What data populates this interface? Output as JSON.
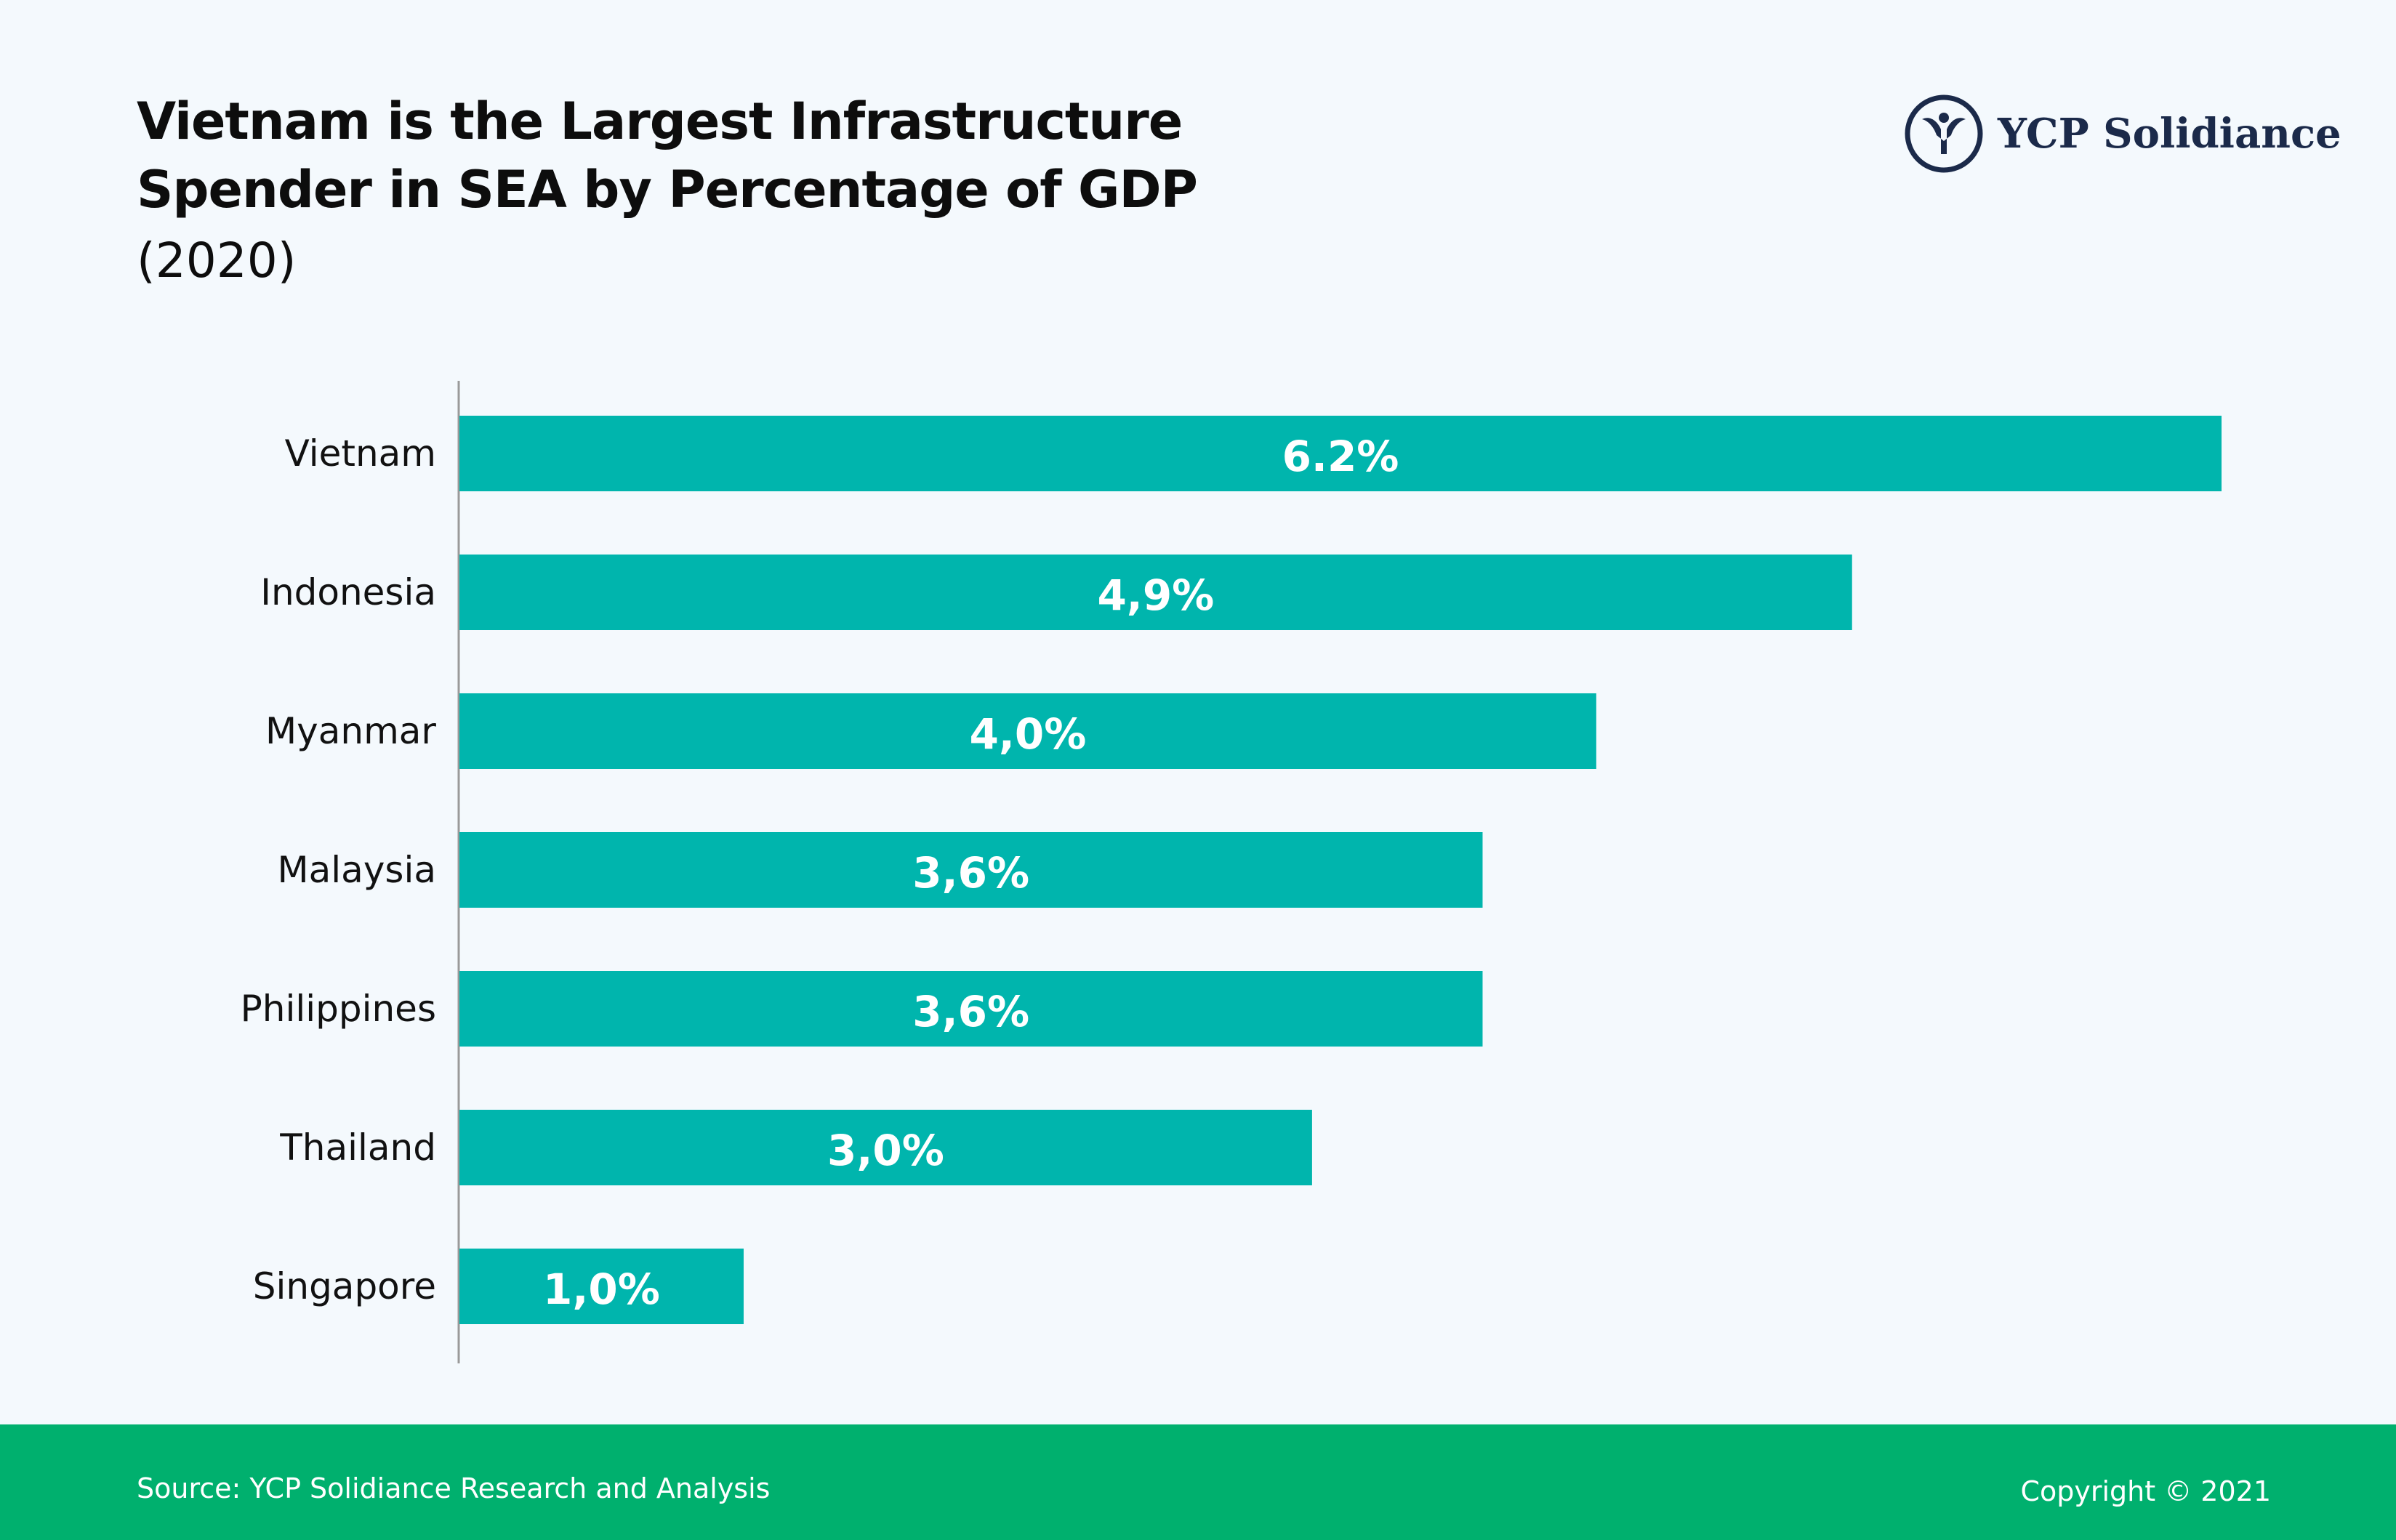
{
  "header": {
    "title_line1": "Vietnam is the Largest Infrastructure",
    "title_line2": "Spender in SEA by Percentage of GDP",
    "subtitle": "(2020)"
  },
  "logo": {
    "icon": "ycp-solidiance-emblem-icon",
    "text": "YCP Solidiance",
    "color": "#1b2a4a"
  },
  "colors": {
    "bar": "#00b5ad",
    "footer": "#00b06e",
    "background": "#f4f9fd"
  },
  "chart_data": {
    "type": "bar",
    "orientation": "horizontal",
    "categories": [
      "Vietnam",
      "Indonesia",
      "Myanmar",
      "Malaysia",
      "Philippines",
      "Thailand",
      "Singapore"
    ],
    "values": [
      6.2,
      4.9,
      4.0,
      3.6,
      3.6,
      3.0,
      1.0
    ],
    "data_labels": [
      "6.2%",
      "4,9%",
      "4,0%",
      "3,6%",
      "3,6%",
      "3,0%",
      "1,0%"
    ],
    "title": "Vietnam is the Largest Infrastructure Spender in SEA by Percentage of GDP",
    "subtitle": "(2020)",
    "xlim": [
      0,
      6.2
    ],
    "grid": false,
    "legend": "none"
  },
  "footer": {
    "source": "Source: YCP Solidiance Research and Analysis",
    "copyright": "Copyright © 2021"
  }
}
